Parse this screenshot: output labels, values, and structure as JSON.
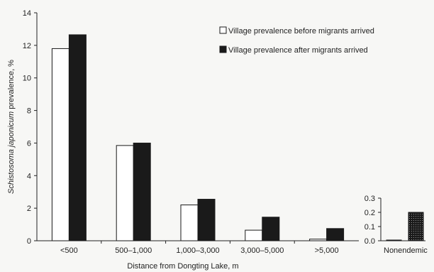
{
  "chart_data": [
    {
      "type": "bar",
      "ylabel_parts": [
        {
          "text": "Schistosoma japonicum",
          "italic": true
        },
        {
          "text": " prevalence, %",
          "italic": false
        }
      ],
      "xlabel": "Distance from Dongting Lake, m",
      "categories": [
        "<500",
        "500–1,000",
        "1,000–3,000",
        "3,000–5,000",
        ">5,000"
      ],
      "ylim": [
        0,
        14
      ],
      "yticks": [
        "0",
        "2",
        "4",
        "6",
        "8",
        "10",
        "12",
        "14"
      ],
      "grid": false,
      "legend_position": "top-right",
      "series": [
        {
          "name": "Village prevalence before migrants arrived",
          "color": "#ffffff",
          "values": [
            11.8,
            5.85,
            2.2,
            0.65,
            0.1
          ]
        },
        {
          "name": "Village prevalence after migrants arrived",
          "color": "#1a1a1a",
          "values": [
            12.65,
            6.0,
            2.55,
            1.45,
            0.75
          ]
        }
      ]
    },
    {
      "type": "bar",
      "categories": [
        "Nonendemic"
      ],
      "ylim": [
        0,
        0.3
      ],
      "yticks": [
        "0.0",
        "0.1",
        "0.2",
        "0.3"
      ],
      "grid": false,
      "series": [
        {
          "name": "Village prevalence before migrants arrived",
          "color": "#ffffff",
          "values": [
            0.005
          ]
        },
        {
          "name": "Village prevalence after migrants arrived",
          "color": "#1a1a1a",
          "values": [
            0.2
          ]
        }
      ]
    }
  ]
}
